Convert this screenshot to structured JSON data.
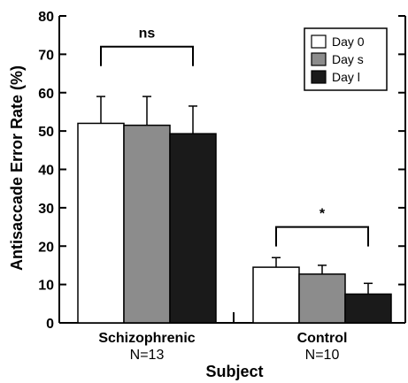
{
  "chart_data": {
    "type": "bar",
    "xlabel": "Subject",
    "ylabel": "Antisaccade Error Rate (%)",
    "ylim": [
      0,
      80
    ],
    "yticks": [
      0,
      10,
      20,
      30,
      40,
      50,
      60,
      70,
      80
    ],
    "categories": [
      "Schizophrenic",
      "Control"
    ],
    "category_sublabels": [
      "N=13",
      "N=10"
    ],
    "series": [
      {
        "name": "Day 0",
        "color": "#ffffff",
        "values": [
          52,
          14.5
        ],
        "error": [
          7,
          2.5
        ]
      },
      {
        "name": "Day s",
        "color": "#8c8c8c",
        "values": [
          51.5,
          12.7
        ],
        "error": [
          7.5,
          2.3
        ]
      },
      {
        "name": "Day l",
        "color": "#1a1a1a",
        "values": [
          49.3,
          7.5
        ],
        "error": [
          7.2,
          2.8
        ]
      }
    ],
    "legend_position": "top-right",
    "annotations": [
      {
        "text": "ns",
        "category": "Schizophrenic",
        "bracket_y": 72
      },
      {
        "text": "*",
        "category": "Control",
        "bracket_y": 25
      }
    ]
  }
}
